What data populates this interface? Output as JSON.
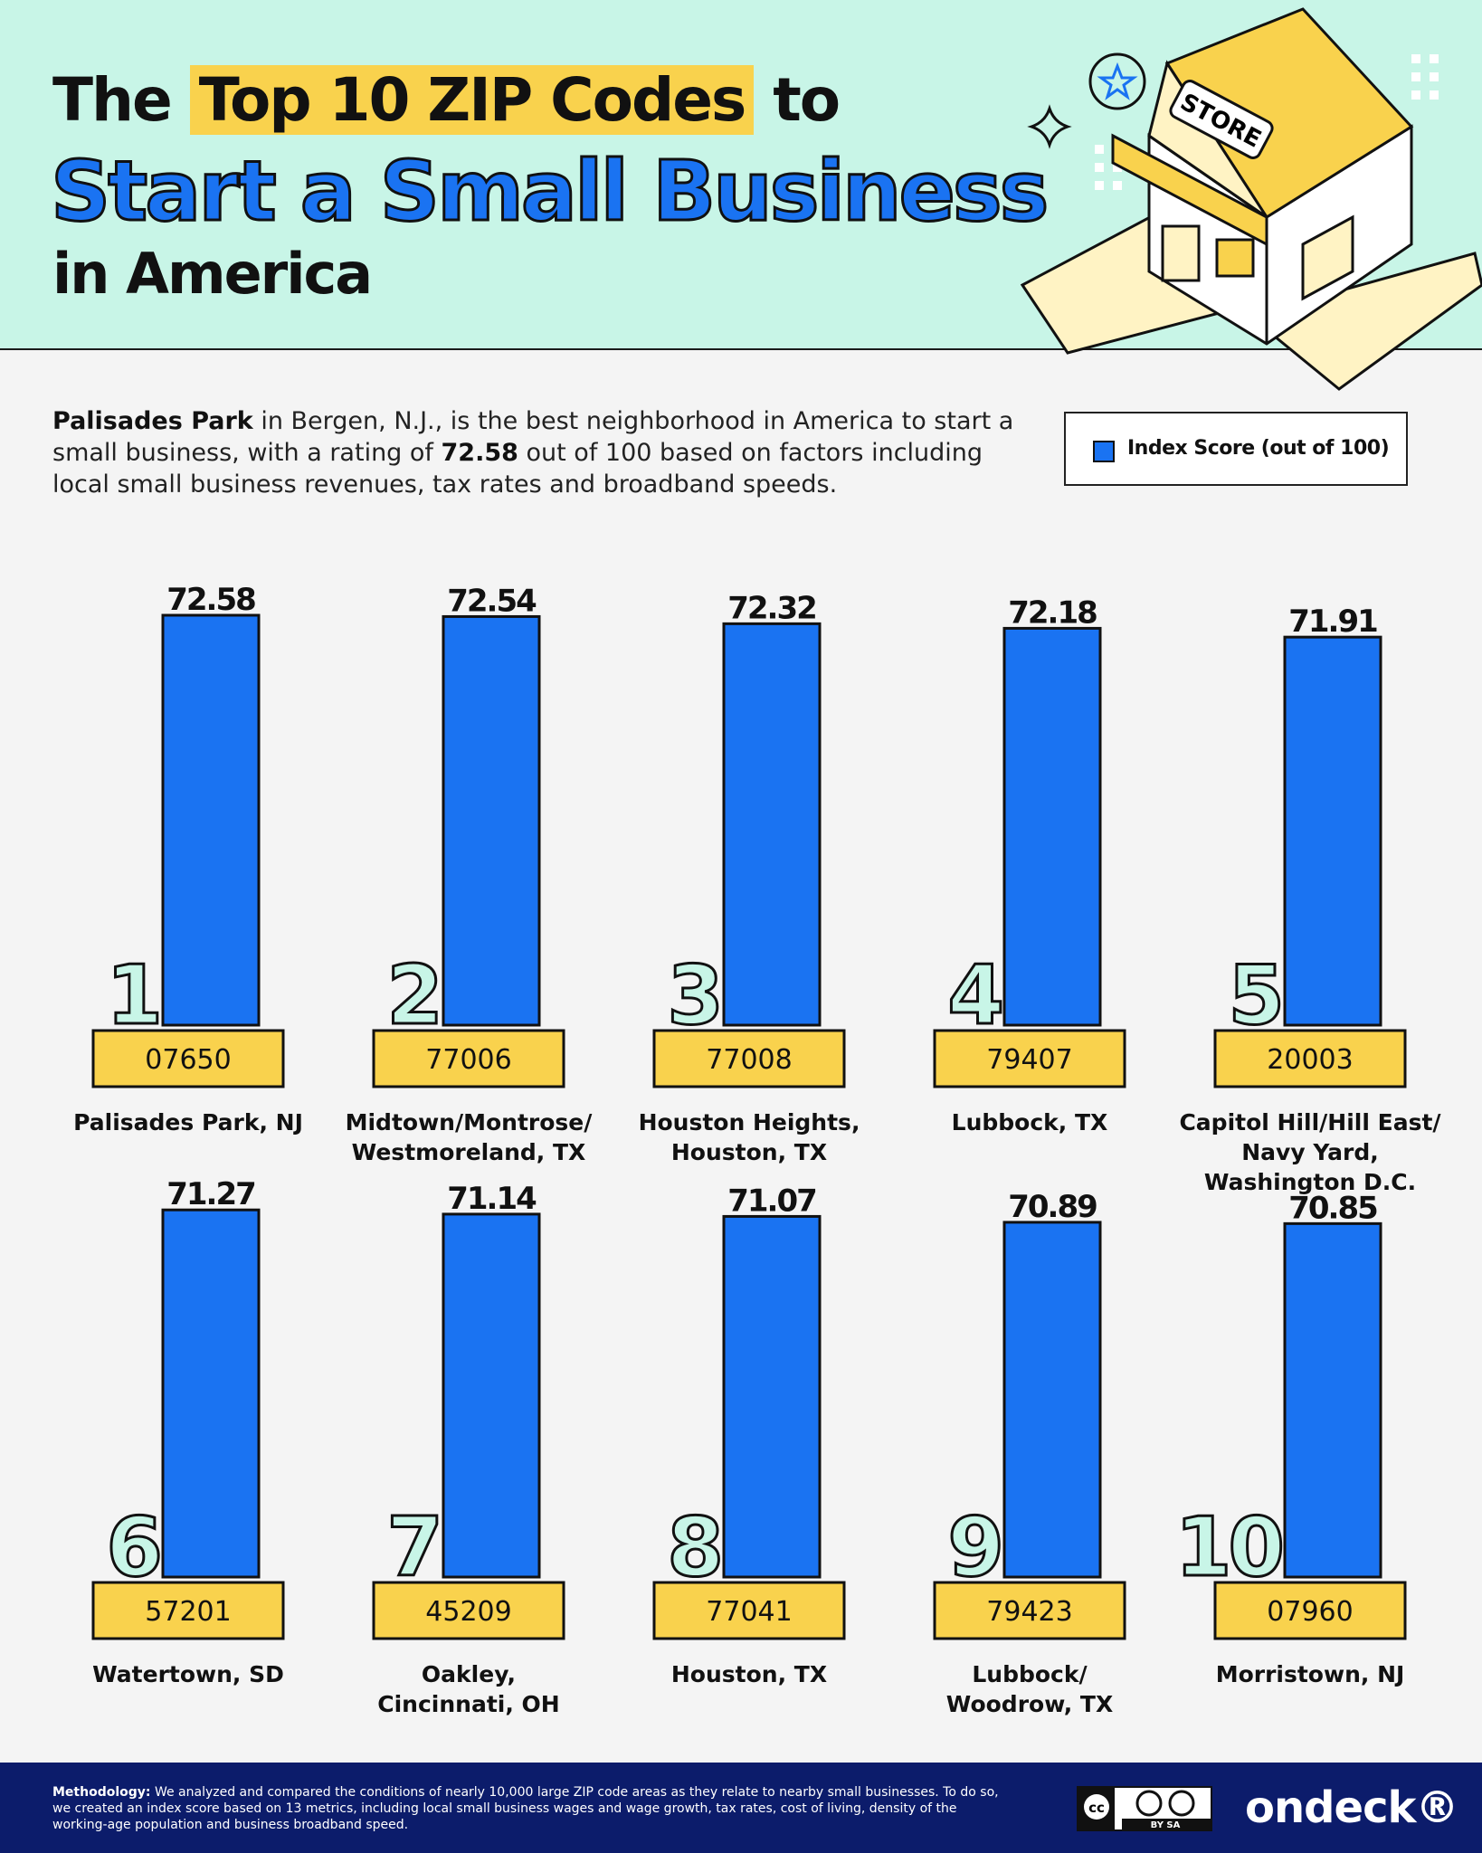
{
  "header": {
    "title_part1": "The",
    "title_highlight": "Top 10 ZIP Codes",
    "title_part2": "to",
    "title_line2": "Start a Small Business",
    "title_line3": "in America",
    "store_sign": "STORE"
  },
  "intro": {
    "bold_lead": "Palisades Park",
    "text1": " in Bergen, N.J., is the best neighborhood in America to start a small business, with a rating of ",
    "bold_value": "72.58",
    "text2": " out of 100 based on factors including local small business revenues, tax rates and broadband speeds."
  },
  "legend": {
    "label": "Index Score (out of 100)"
  },
  "colors": {
    "bar": "#1a73f2",
    "zip_box": "#f9d24d",
    "rank_fill": "#c8f5e7",
    "header_bg": "#c8f5e7",
    "footer_bg": "#0c1c6b"
  },
  "chart_data": {
    "type": "bar",
    "series": [
      {
        "name": "Index Score (out of 100)"
      }
    ],
    "items": [
      {
        "rank": "1",
        "zip": "07650",
        "value": 72.58,
        "label": "72.58",
        "place": [
          "Palisades Park, NJ"
        ]
      },
      {
        "rank": "2",
        "zip": "77006",
        "value": 72.54,
        "label": "72.54",
        "place": [
          "Midtown/Montrose/",
          "Westmoreland, TX"
        ]
      },
      {
        "rank": "3",
        "zip": "77008",
        "value": 72.32,
        "label": "72.32",
        "place": [
          "Houston Heights,",
          "Houston, TX"
        ]
      },
      {
        "rank": "4",
        "zip": "79407",
        "value": 72.18,
        "label": "72.18",
        "place": [
          "Lubbock, TX"
        ]
      },
      {
        "rank": "5",
        "zip": "20003",
        "value": 71.91,
        "label": "71.91",
        "place": [
          "Capitol Hill/Hill East/",
          "Navy Yard,",
          "Washington D.C."
        ]
      },
      {
        "rank": "6",
        "zip": "57201",
        "value": 71.27,
        "label": "71.27",
        "place": [
          "Watertown, SD"
        ]
      },
      {
        "rank": "7",
        "zip": "45209",
        "value": 71.14,
        "label": "71.14",
        "place": [
          "Oakley,",
          "Cincinnati, OH"
        ]
      },
      {
        "rank": "8",
        "zip": "77041",
        "value": 71.07,
        "label": "71.07",
        "place": [
          "Houston, TX"
        ]
      },
      {
        "rank": "9",
        "zip": "79423",
        "value": 70.89,
        "label": "70.89",
        "place": [
          "Lubbock/",
          "Woodrow, TX"
        ]
      },
      {
        "rank": "10",
        "zip": "07960",
        "value": 70.85,
        "label": "70.85",
        "place": [
          "Morristown, NJ"
        ]
      }
    ]
  },
  "footer": {
    "methodology_label": "Methodology:",
    "methodology_text": " We analyzed and compared the conditions of nearly 10,000 large ZIP code areas as they relate to nearby small businesses. To do so, we created an index score based on 13 metrics, including local small business wages and wage growth, tax rates, cost of living, density of the working-age population and business broadband speed.",
    "license": "BY SA",
    "logo": "ondeck®"
  }
}
